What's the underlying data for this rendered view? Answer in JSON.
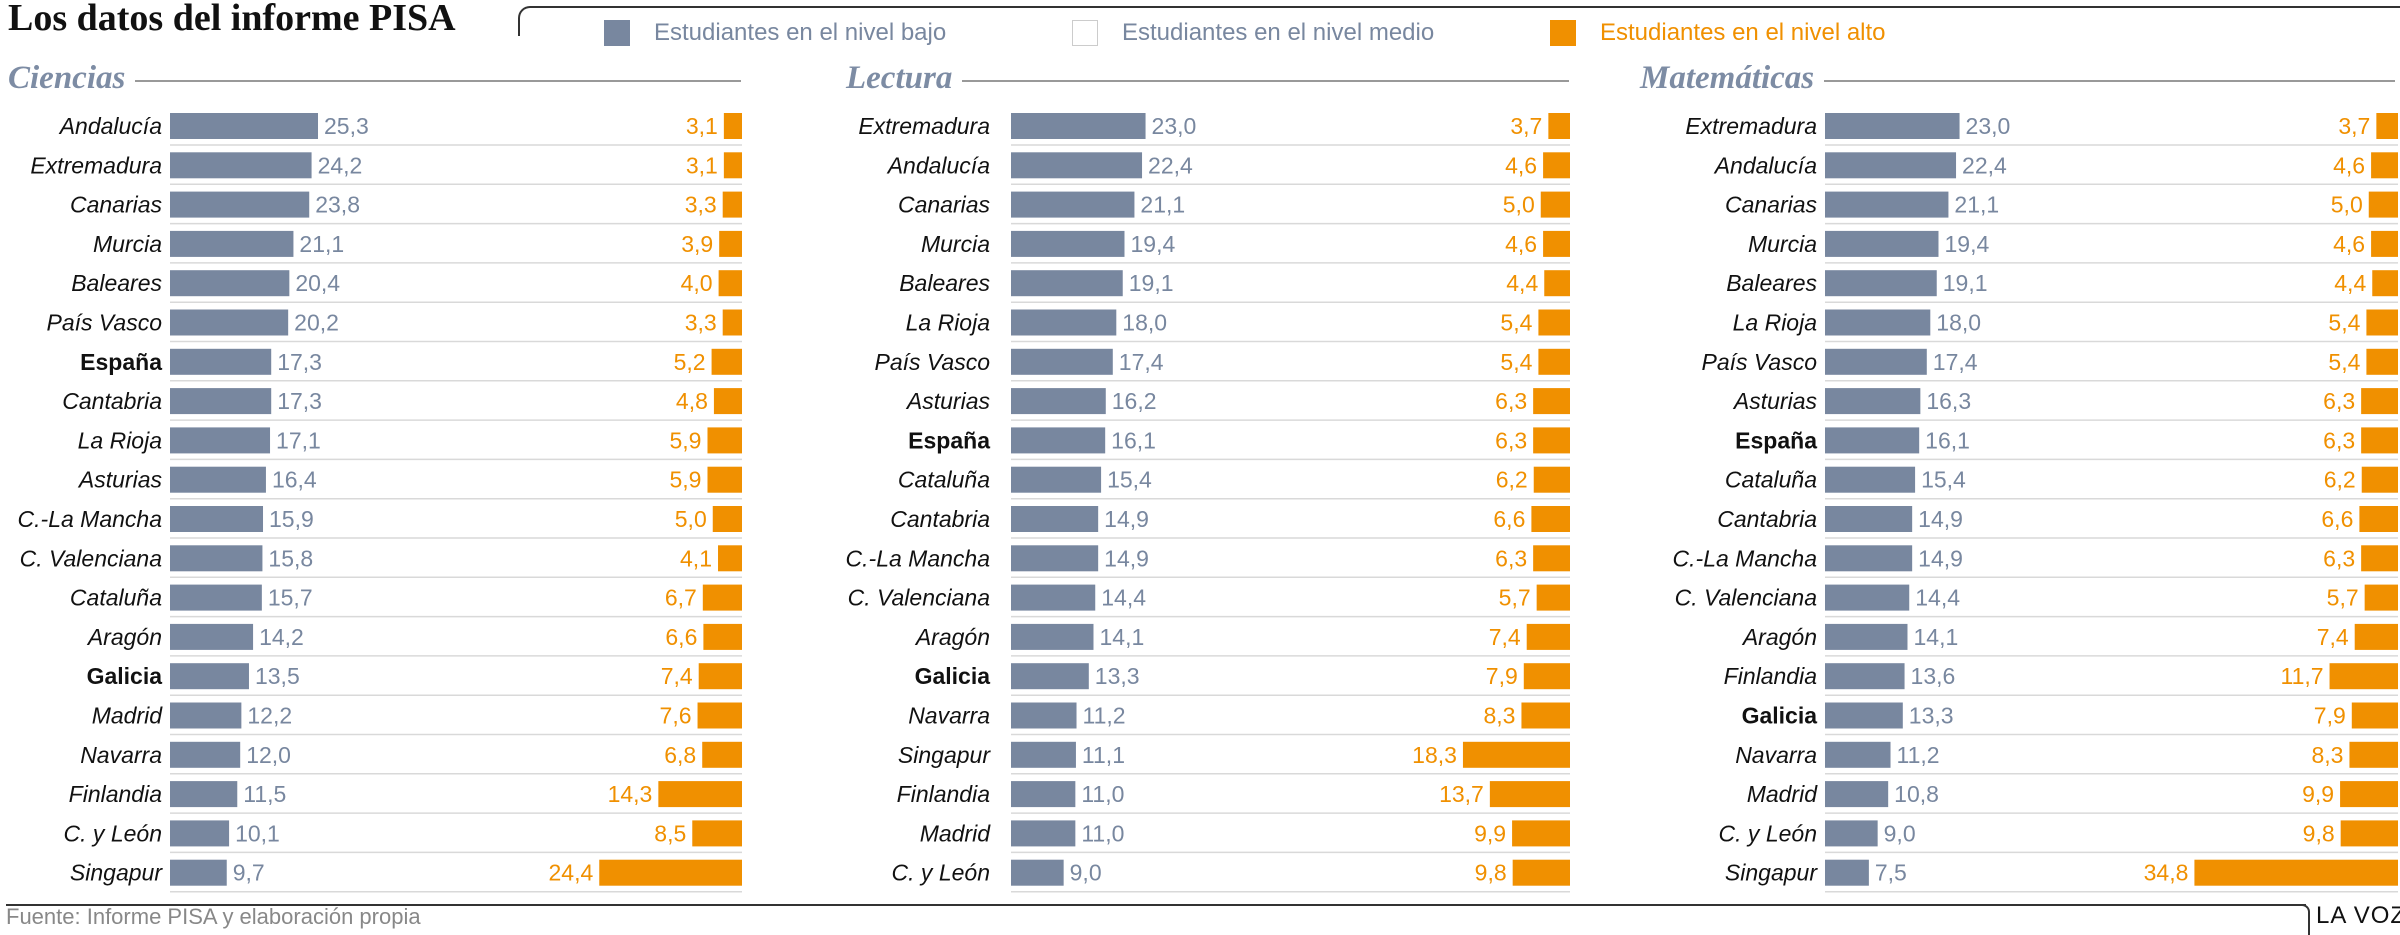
{
  "title": "Los datos del informe PISA",
  "legend": {
    "low": "Estudiantes en el nivel bajo",
    "mid": "Estudiantes en el nivel medio",
    "high": "Estudiantes en el nivel alto"
  },
  "colors": {
    "low": "#78879f",
    "high": "#f09000",
    "mid": "#ffffff",
    "low_text": "#78879f",
    "high_text": "#f09000",
    "panel_title": "#7d8ca4"
  },
  "source": "Fuente: Informe PISA y elaboración propia",
  "brand": "LA VOZ",
  "chart_data": [
    {
      "type": "bar",
      "title": "Ciencias",
      "categories": [
        "Andalucía",
        "Extremadura",
        "Canarias",
        "Murcia",
        "Baleares",
        "País Vasco",
        "España",
        "Cantabria",
        "La Rioja",
        "Asturias",
        "C.-La Mancha",
        "C. Valenciana",
        "Cataluña",
        "Aragón",
        "Galicia",
        "Madrid",
        "Navarra",
        "Finlandia",
        "C. y León",
        "Singapur"
      ],
      "highlight": [
        "España",
        "Galicia"
      ],
      "series": [
        {
          "name": "Estudiantes en el nivel bajo",
          "values": [
            "25,3",
            "24,2",
            "23,8",
            "21,1",
            "20,4",
            "20,2",
            "17,3",
            "17,3",
            "17,1",
            "16,4",
            "15,9",
            "15,8",
            "15,7",
            "14,2",
            "13,5",
            "12,2",
            "12,0",
            "11,5",
            "10,1",
            "9,7"
          ]
        },
        {
          "name": "Estudiantes en el nivel alto",
          "values": [
            "3,1",
            "3,1",
            "3,3",
            "3,9",
            "4,0",
            "3,3",
            "5,2",
            "4,8",
            "5,9",
            "5,9",
            "5,0",
            "4,1",
            "6,7",
            "6,6",
            "7,4",
            "7,6",
            "6,8",
            "14,3",
            "8,5",
            "24,4"
          ]
        }
      ]
    },
    {
      "type": "bar",
      "title": "Lectura",
      "categories": [
        "Extremadura",
        "Andalucía",
        "Canarias",
        "Murcia",
        "Baleares",
        "La Rioja",
        "País Vasco",
        "Asturias",
        "España",
        "Cataluña",
        "Cantabria",
        "C.-La Mancha",
        "C. Valenciana",
        "Aragón",
        "Galicia",
        "Navarra",
        "Singapur",
        "Finlandia",
        "Madrid",
        "C. y León"
      ],
      "highlight": [
        "España",
        "Galicia"
      ],
      "series": [
        {
          "name": "Estudiantes en el nivel bajo",
          "values": [
            "23,0",
            "22,4",
            "21,1",
            "19,4",
            "19,1",
            "18,0",
            "17,4",
            "16,2",
            "16,1",
            "15,4",
            "14,9",
            "14,9",
            "14,4",
            "14,1",
            "13,3",
            "11,2",
            "11,1",
            "11,0",
            "11,0",
            "9,0"
          ]
        },
        {
          "name": "Estudiantes en el nivel alto",
          "values": [
            "3,7",
            "4,6",
            "5,0",
            "4,6",
            "4,4",
            "5,4",
            "5,4",
            "6,3",
            "6,3",
            "6,2",
            "6,6",
            "6,3",
            "5,7",
            "7,4",
            "7,9",
            "8,3",
            "18,3",
            "13,7",
            "9,9",
            "9,8"
          ]
        }
      ]
    },
    {
      "type": "bar",
      "title": "Matemáticas",
      "categories": [
        "Extremadura",
        "Andalucía",
        "Canarias",
        "Murcia",
        "Baleares",
        "La Rioja",
        "País Vasco",
        "Asturias",
        "España",
        "Cataluña",
        "Cantabria",
        "C.-La Mancha",
        "C. Valenciana",
        "Aragón",
        "Finlandia",
        "Galicia",
        "Navarra",
        "Madrid",
        "C. y León",
        "Singapur"
      ],
      "highlight": [
        "España",
        "Galicia"
      ],
      "series": [
        {
          "name": "Estudiantes en el nivel bajo",
          "values": [
            "23,0",
            "22,4",
            "21,1",
            "19,4",
            "19,1",
            "18,0",
            "17,4",
            "16,3",
            "16,1",
            "15,4",
            "14,9",
            "14,9",
            "14,4",
            "14,1",
            "13,6",
            "13,3",
            "11,2",
            "10,8",
            "9,0",
            "7,5"
          ]
        },
        {
          "name": "Estudiantes en el nivel alto",
          "values": [
            "3,7",
            "4,6",
            "5,0",
            "4,6",
            "4,4",
            "5,4",
            "5,4",
            "6,3",
            "6,3",
            "6,2",
            "6,6",
            "6,3",
            "5,7",
            "7,4",
            "11,7",
            "7,9",
            "8,3",
            "9,9",
            "9,8",
            "34,8"
          ]
        }
      ]
    }
  ]
}
